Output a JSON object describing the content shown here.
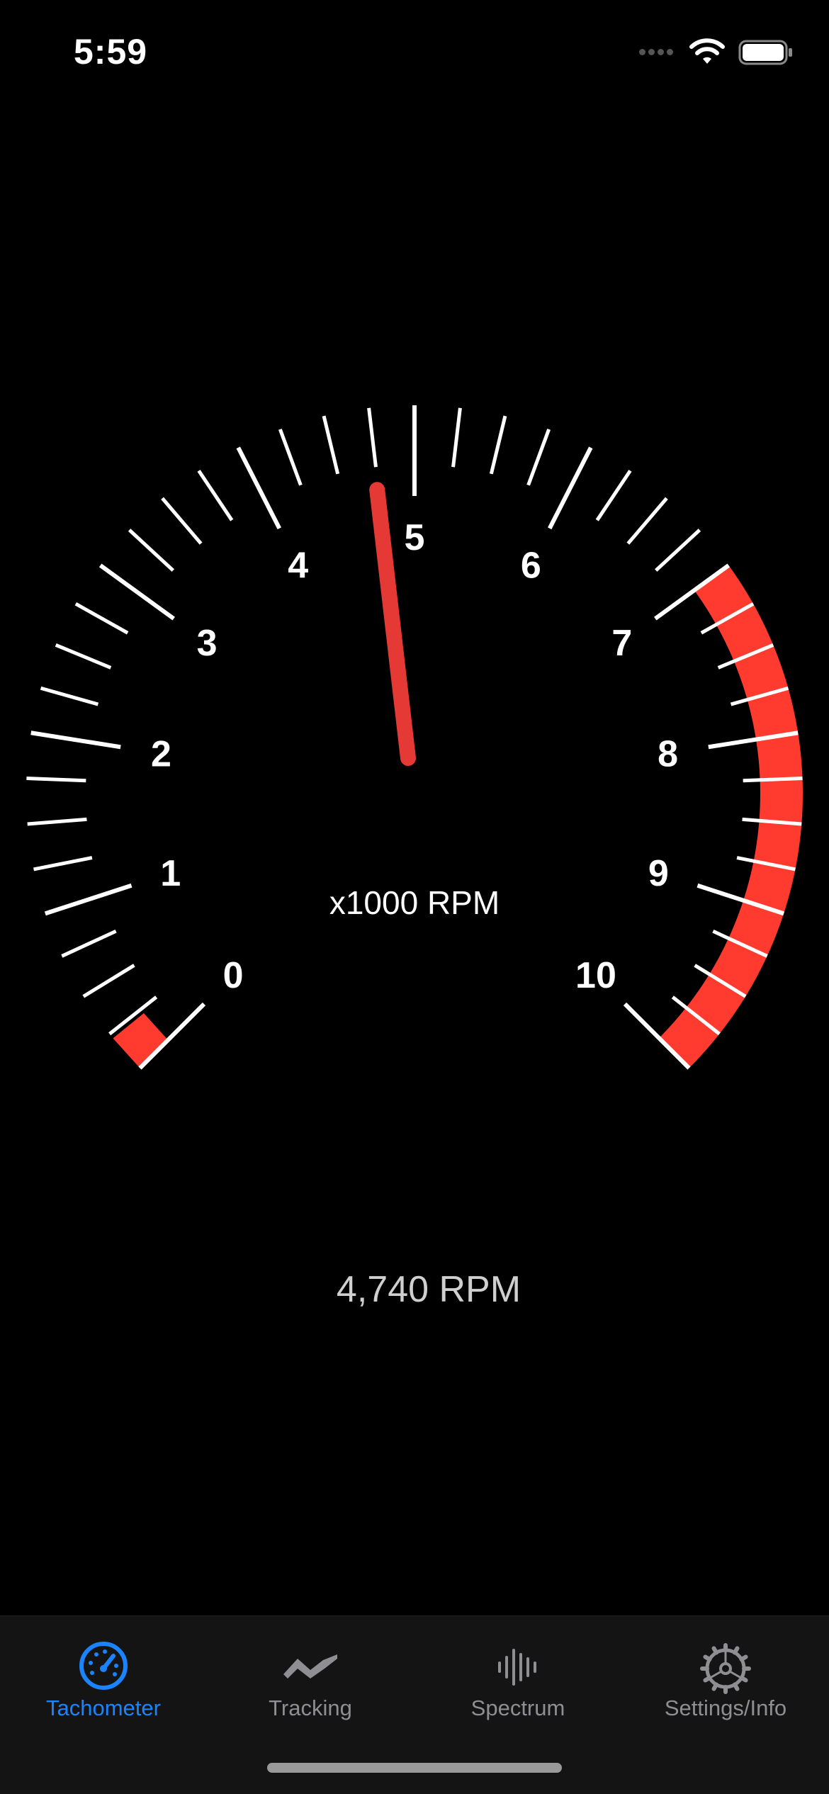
{
  "status_bar": {
    "time": "5:59"
  },
  "gauge": {
    "min": 0,
    "max": 10,
    "redline_start": 7,
    "tick_labels": [
      "0",
      "1",
      "2",
      "3",
      "4",
      "5",
      "6",
      "7",
      "8",
      "9",
      "10"
    ],
    "unit_label": "x1000 RPM",
    "needle_value": 4.74,
    "colors": {
      "tick": "#ffffff",
      "redline": "#ff3b30",
      "needle": "#e53935"
    }
  },
  "readout": {
    "rpm_text": "4,740 RPM"
  },
  "tab_bar": {
    "active_color": "#1a84ff",
    "inactive_color": "#8e8e93",
    "tabs": [
      {
        "label": "Tachometer",
        "icon": "speedometer-icon",
        "active": true
      },
      {
        "label": "Tracking",
        "icon": "tracking-wave-icon",
        "active": false
      },
      {
        "label": "Spectrum",
        "icon": "waveform-icon",
        "active": false
      },
      {
        "label": "Settings/Info",
        "icon": "gear-icon",
        "active": false
      }
    ]
  }
}
